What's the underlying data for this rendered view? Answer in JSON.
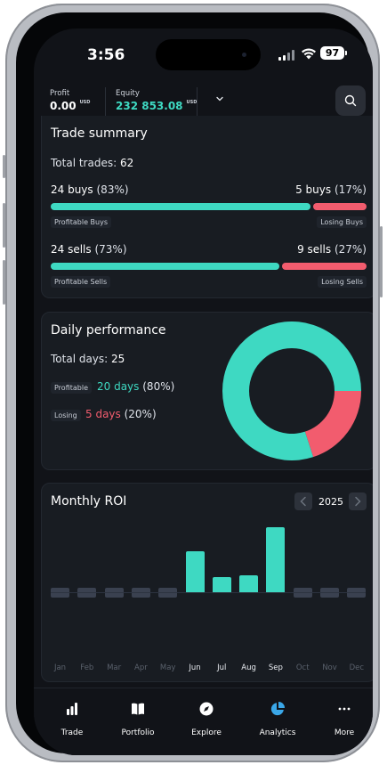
{
  "status": {
    "time": "3:56",
    "battery": "97"
  },
  "header": {
    "profit_label": "Profit",
    "profit_value": "0.00",
    "profit_unit": "USD",
    "equity_label": "Equity",
    "equity_value": "232 853.08",
    "equity_unit": "USD"
  },
  "trade_summary": {
    "title": "Trade summary",
    "total_label": "Total trades:",
    "total_value": "62",
    "buys": {
      "profitable_count": "24 buys",
      "profitable_pct": "(83%)",
      "losing_count": "5 buys",
      "losing_pct": "(17%)",
      "profitable_fraction": 0.83,
      "profitable_tag": "Profitable Buys",
      "losing_tag": "Losing Buys"
    },
    "sells": {
      "profitable_count": "24 sells",
      "profitable_pct": "(73%)",
      "losing_count": "9 sells",
      "losing_pct": "(27%)",
      "profitable_fraction": 0.73,
      "profitable_tag": "Profitable Sells",
      "losing_tag": "Losing Sells"
    }
  },
  "daily_performance": {
    "title": "Daily performance",
    "total_label": "Total days:",
    "total_value": "25",
    "profitable_tag": "Profitable",
    "profitable_days": "20 days",
    "profitable_pct": "(80%)",
    "losing_tag": "Losing",
    "losing_days": "5 days",
    "losing_pct": "(20%)",
    "profitable_fraction": 0.8,
    "colors": {
      "profitable": "#3ed9c2",
      "losing": "#f25c6e"
    }
  },
  "monthly_roi": {
    "title": "Monthly ROI",
    "year": "2025",
    "months": [
      "Jan",
      "Feb",
      "Mar",
      "Apr",
      "May",
      "Jun",
      "Jul",
      "Aug",
      "Sep",
      "Oct",
      "Nov",
      "Dec"
    ],
    "active_months": [
      false,
      false,
      false,
      false,
      false,
      true,
      true,
      true,
      true,
      false,
      false,
      false
    ],
    "roi_relative": [
      0,
      0,
      0,
      0,
      0,
      0.57,
      0.21,
      0.24,
      0.91,
      0,
      0,
      0
    ]
  },
  "tabbar": {
    "items": [
      {
        "label": "Trade",
        "icon": "bar-chart-icon"
      },
      {
        "label": "Portfolio",
        "icon": "book-icon"
      },
      {
        "label": "Explore",
        "icon": "compass-icon"
      },
      {
        "label": "Analytics",
        "icon": "pie-chart-icon"
      },
      {
        "label": "More",
        "icon": "more-dots-icon"
      }
    ],
    "active_index": 3
  }
}
